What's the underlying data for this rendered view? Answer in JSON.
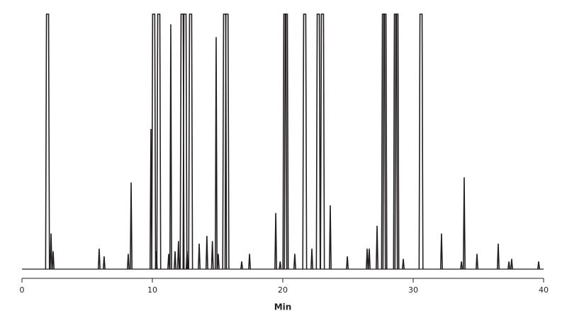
{
  "chart_data": {
    "type": "chromatogram",
    "xlabel": "Min",
    "color": "#231f20",
    "xlim": [
      0,
      40
    ],
    "xticks": [
      0,
      10,
      20,
      30,
      40
    ],
    "ylim": [
      0,
      100
    ],
    "x": [
      1.96,
      2.23,
      2.39,
      5.92,
      6.3,
      8.15,
      8.37,
      9.89,
      10.1,
      10.3,
      10.49,
      11.25,
      11.41,
      11.74,
      12.0,
      12.28,
      12.5,
      12.66,
      12.93,
      13.59,
      14.18,
      14.6,
      14.89,
      15.05,
      15.54,
      15.72,
      16.85,
      17.45,
      19.46,
      19.8,
      20.16,
      20.27,
      20.92,
      21.68,
      22.23,
      22.72,
      23.04,
      23.64,
      24.95,
      26.47,
      26.63,
      27.23,
      27.72,
      27.83,
      28.64,
      28.75,
      29.24,
      30.6,
      32.17,
      33.7,
      33.91,
      34.89,
      36.52,
      37.34,
      37.55,
      39.62
    ],
    "values": [
      100,
      14,
      7,
      8,
      5,
      6,
      34,
      55,
      100,
      7,
      100,
      6,
      96,
      7,
      11,
      100,
      100,
      7,
      100,
      10,
      13,
      11,
      91,
      6,
      100,
      100,
      3,
      6,
      22,
      3,
      100,
      100,
      6,
      100,
      8,
      100,
      100,
      25,
      5,
      8,
      8,
      17,
      100,
      100,
      100,
      100,
      4,
      100,
      14,
      3,
      36,
      6,
      10,
      3,
      4,
      3
    ]
  }
}
